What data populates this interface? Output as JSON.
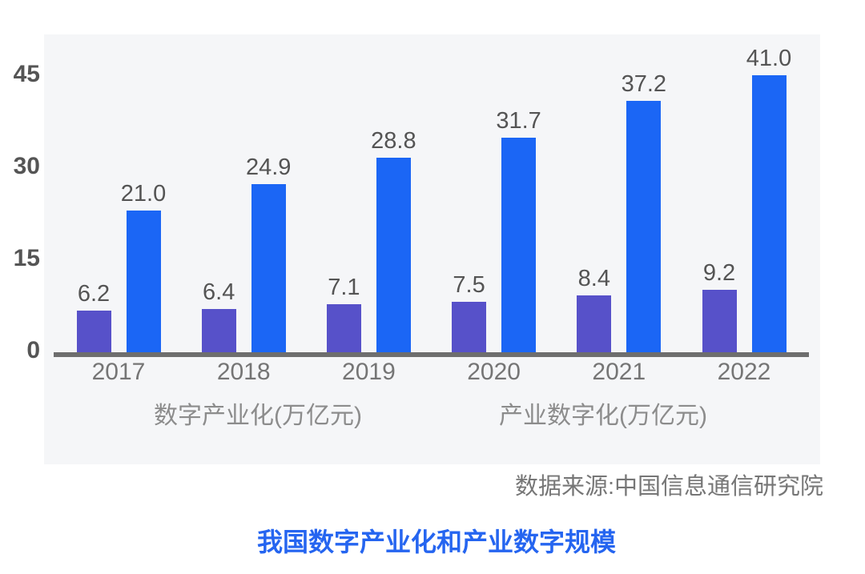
{
  "title": "我国数字产业化和产业数字规模",
  "source_note": "数据来源:中国信息通信研究院",
  "colors": {
    "series1": "#5751c9",
    "series2": "#1b66f5",
    "panel_background": "#f5f6f8",
    "axis_line": "#6e6e6e",
    "title_accent": "#2565f0",
    "tick_text": "#555555",
    "year_text": "#757575",
    "value_text": "#545454",
    "legend_text": "#8c8c8c",
    "source_text": "#767676"
  },
  "chart_data": {
    "type": "bar",
    "title": "我国数字产业化和产业数字规模",
    "categories": [
      "2017",
      "2018",
      "2019",
      "2020",
      "2021",
      "2022"
    ],
    "series": [
      {
        "name": "数字产业化(万亿元)",
        "color": "#5751c9",
        "values": [
          6.2,
          6.4,
          7.1,
          7.5,
          8.4,
          9.2
        ],
        "labels": [
          "6.2",
          "6.4",
          "7.1",
          "7.5",
          "8.4",
          "9.2"
        ]
      },
      {
        "name": "产业数字化(万亿元)",
        "color": "#1b66f5",
        "values": [
          21.0,
          24.9,
          28.8,
          31.7,
          37.2,
          41.0
        ],
        "labels": [
          "21.0",
          "24.9",
          "28.8",
          "31.7",
          "37.2",
          "41.0"
        ]
      }
    ],
    "xlabel": "",
    "ylabel": "",
    "yticks": [
      0,
      15,
      30,
      45
    ],
    "ytick_labels": [
      "0",
      "15",
      "30",
      "45"
    ],
    "ylim": [
      0,
      47
    ],
    "grid": false,
    "value_labels": true,
    "legend_position": "bottom",
    "source": "数据来源:中国信息通信研究院"
  }
}
